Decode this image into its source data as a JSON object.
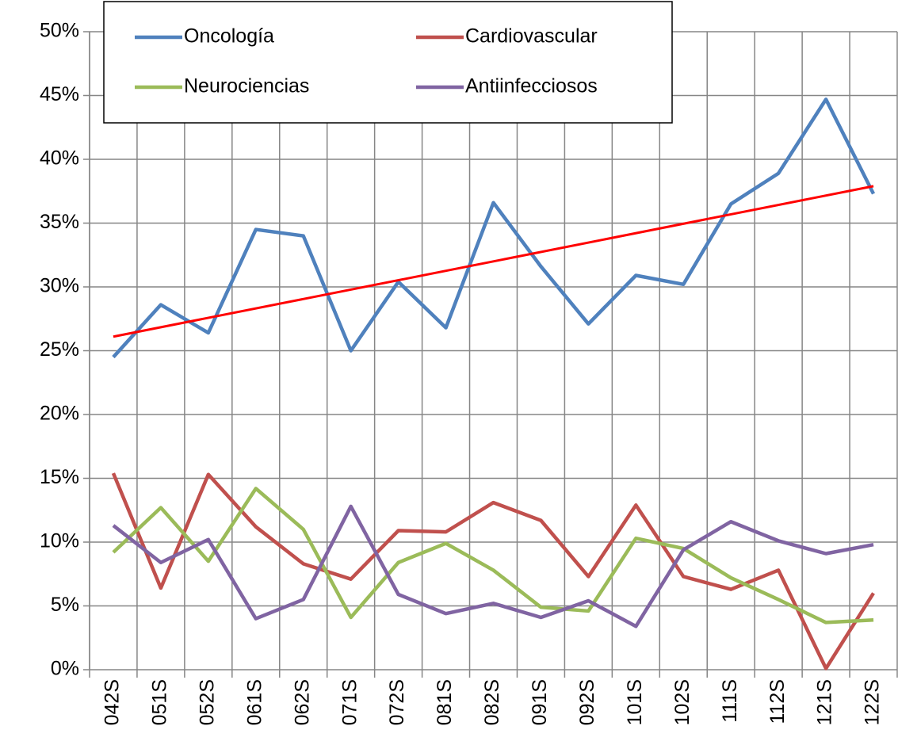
{
  "chart_data": {
    "type": "line",
    "categories": [
      "042S",
      "051S",
      "052S",
      "061S",
      "062S",
      "071S",
      "072S",
      "081S",
      "082S",
      "091S",
      "092S",
      "101S",
      "102S",
      "111S",
      "112S",
      "121S",
      "122S"
    ],
    "series": [
      {
        "name": "Oncología",
        "color": "#4f81bd",
        "values": [
          24.5,
          28.6,
          26.4,
          34.5,
          34.0,
          25.0,
          30.4,
          26.8,
          36.6,
          31.6,
          27.1,
          30.9,
          30.2,
          36.5,
          38.9,
          44.7,
          37.3
        ]
      },
      {
        "name": "Cardiovascular",
        "color": "#c0504d",
        "values": [
          15.4,
          6.4,
          15.3,
          11.2,
          8.3,
          7.1,
          10.9,
          10.8,
          13.1,
          11.7,
          7.3,
          12.9,
          7.3,
          6.3,
          7.8,
          0.1,
          6.0
        ]
      },
      {
        "name": "Neurociencias",
        "color": "#9bbb59",
        "values": [
          9.2,
          12.7,
          8.5,
          14.2,
          11.0,
          4.1,
          8.4,
          9.9,
          7.8,
          4.9,
          4.6,
          10.3,
          9.5,
          7.2,
          5.5,
          3.7,
          3.9
        ]
      },
      {
        "name": "Antiinfecciosos",
        "color": "#8064a2",
        "values": [
          11.3,
          8.4,
          10.2,
          4.0,
          5.5,
          12.8,
          5.9,
          4.4,
          5.2,
          4.1,
          5.4,
          3.4,
          9.4,
          11.6,
          10.1,
          9.1,
          9.8
        ]
      }
    ],
    "trendline": {
      "series": 0,
      "type": "linear",
      "color": "#ff0000"
    },
    "ylim": [
      0,
      50
    ],
    "yticks": [
      {
        "value": 0,
        "label": "0%"
      },
      {
        "value": 5,
        "label": "5%"
      },
      {
        "value": 10,
        "label": "10%"
      },
      {
        "value": 15,
        "label": "15%"
      },
      {
        "value": 20,
        "label": "20%"
      },
      {
        "value": 25,
        "label": "25%"
      },
      {
        "value": 30,
        "label": "30%"
      },
      {
        "value": 35,
        "label": "35%"
      },
      {
        "value": 40,
        "label": "40%"
      },
      {
        "value": 45,
        "label": "45%"
      },
      {
        "value": 50,
        "label": "50%"
      }
    ],
    "grid": true
  }
}
